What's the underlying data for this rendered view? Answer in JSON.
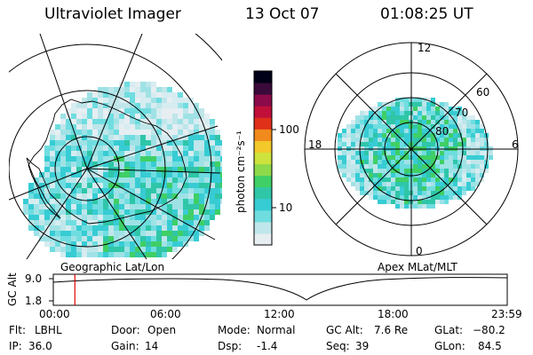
{
  "header": {
    "instrument": "Ultraviolet Imager",
    "date": "13 Oct 07",
    "time": "01:08:25 UT"
  },
  "left_panel": {
    "label": "Geographic Lat/Lon"
  },
  "right_panel": {
    "label": "Apex MLat/MLT",
    "mlt_labels": [
      "12",
      "18",
      "6",
      "0"
    ],
    "mlat_labels": [
      "60",
      "70",
      "80"
    ]
  },
  "colorbar": {
    "unit_label": "photon cm⁻²s⁻¹",
    "tick_labels": [
      "100",
      "10"
    ],
    "colors": [
      "#e6eef2",
      "#bfe6ea",
      "#6fdde0",
      "#37ccd4",
      "#2fc6a8",
      "#3fcf66",
      "#8ed94a",
      "#cde23c",
      "#f2c82a",
      "#f08a1c",
      "#e0301a",
      "#c0103a",
      "#8a0a4a",
      "#3a0a3a",
      "#000018"
    ]
  },
  "altitude_plot": {
    "ylabel": "GC Alt",
    "y_ticks": [
      "9.0",
      "1.8"
    ],
    "x_ticks": [
      "00:00",
      "06:00",
      "12:00",
      "18:00",
      "23:59"
    ],
    "marker_time_hours": 1.14,
    "marker_color": "#e00000"
  },
  "status": {
    "row1": [
      {
        "key": "Flt:",
        "value": "LBHL"
      },
      {
        "key": "Door:",
        "value": "Open"
      },
      {
        "key": "Mode:",
        "value": "Normal"
      },
      {
        "key": "GC Alt:",
        "value": "7.6 Re"
      },
      {
        "key": "GLat:",
        "value": "−80.2"
      }
    ],
    "row2": [
      {
        "key": "IP:",
        "value": "36.0"
      },
      {
        "key": "Gain:",
        "value": "14"
      },
      {
        "key": "Dsp:",
        "value": "-1.4"
      },
      {
        "key": "Seq:",
        "value": "39"
      },
      {
        "key": "GLon:",
        "value": "84.5"
      }
    ]
  }
}
